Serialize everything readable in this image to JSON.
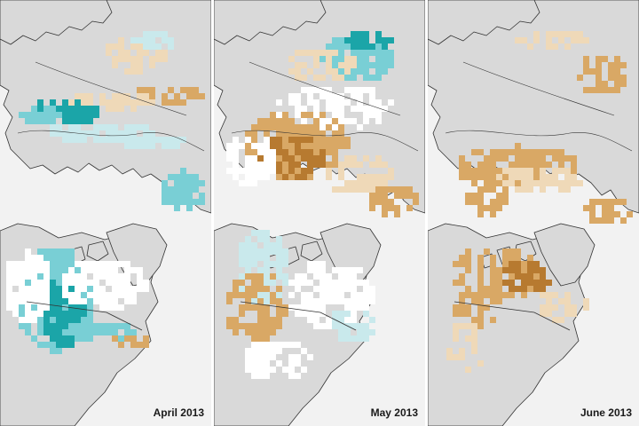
{
  "panels": [
    {
      "label": "April 2013"
    },
    {
      "label": "May 2013"
    },
    {
      "label": "June 2013"
    }
  ],
  "colors": {
    "background": "#f2f2f2",
    "land": "#d9d9d9",
    "no_change": "#ffffff",
    "less_snow_light": "#efd9b8",
    "less_snow_mid": "#d9a865",
    "less_snow_strong": "#b77a30",
    "more_snow_light": "#c9e9ec",
    "more_snow_mid": "#79cfd5",
    "more_snow_strong": "#1ba5a8",
    "coastline": "#333333"
  }
}
